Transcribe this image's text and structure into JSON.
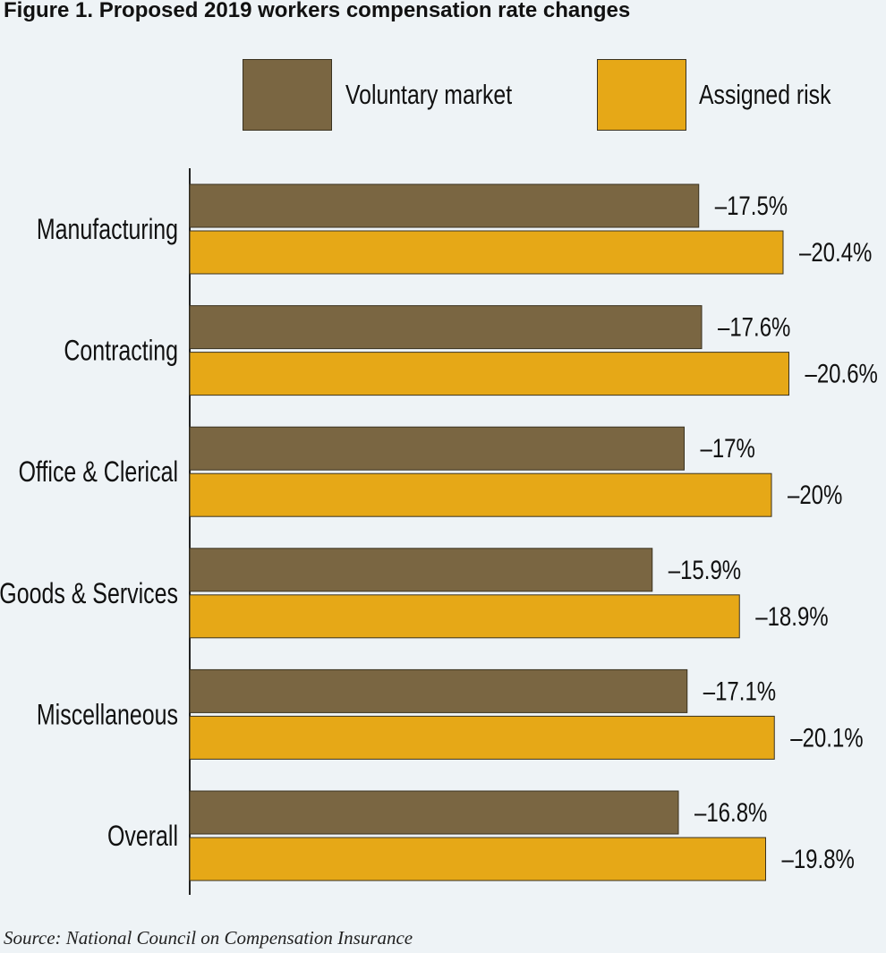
{
  "title": "Figure 1. Proposed 2019 workers compensation rate changes",
  "source": "Source: National Council on Compensation Insurance",
  "legend": {
    "voluntary": "Voluntary market",
    "assigned": "Assigned risk"
  },
  "colors": {
    "voluntary": "#7a6642",
    "assigned": "#e6a817",
    "background": "#eef3f6"
  },
  "chart_data": {
    "type": "bar",
    "orientation": "horizontal",
    "title": "Figure 1. Proposed 2019 workers compensation rate changes",
    "categories": [
      "Manufacturing",
      "Contracting",
      "Office & Clerical",
      "Goods & Services",
      "Miscellaneous",
      "Overall"
    ],
    "series": [
      {
        "name": "Voluntary market",
        "values": [
          -17.5,
          -17.6,
          -17,
          -15.9,
          -17.1,
          -16.8
        ],
        "labels": [
          "–17.5%",
          "–17.6%",
          "–17%",
          "–15.9%",
          "–17.1%",
          "–16.8%"
        ]
      },
      {
        "name": "Assigned risk",
        "values": [
          -20.4,
          -20.6,
          -20,
          -18.9,
          -20.1,
          -19.8
        ],
        "labels": [
          "–20.4%",
          "–20.6%",
          "–20%",
          "–18.9%",
          "–20.1%",
          "–19.8%"
        ]
      }
    ],
    "xlim": [
      0,
      -22
    ],
    "grid": false,
    "legend_position": "top"
  }
}
